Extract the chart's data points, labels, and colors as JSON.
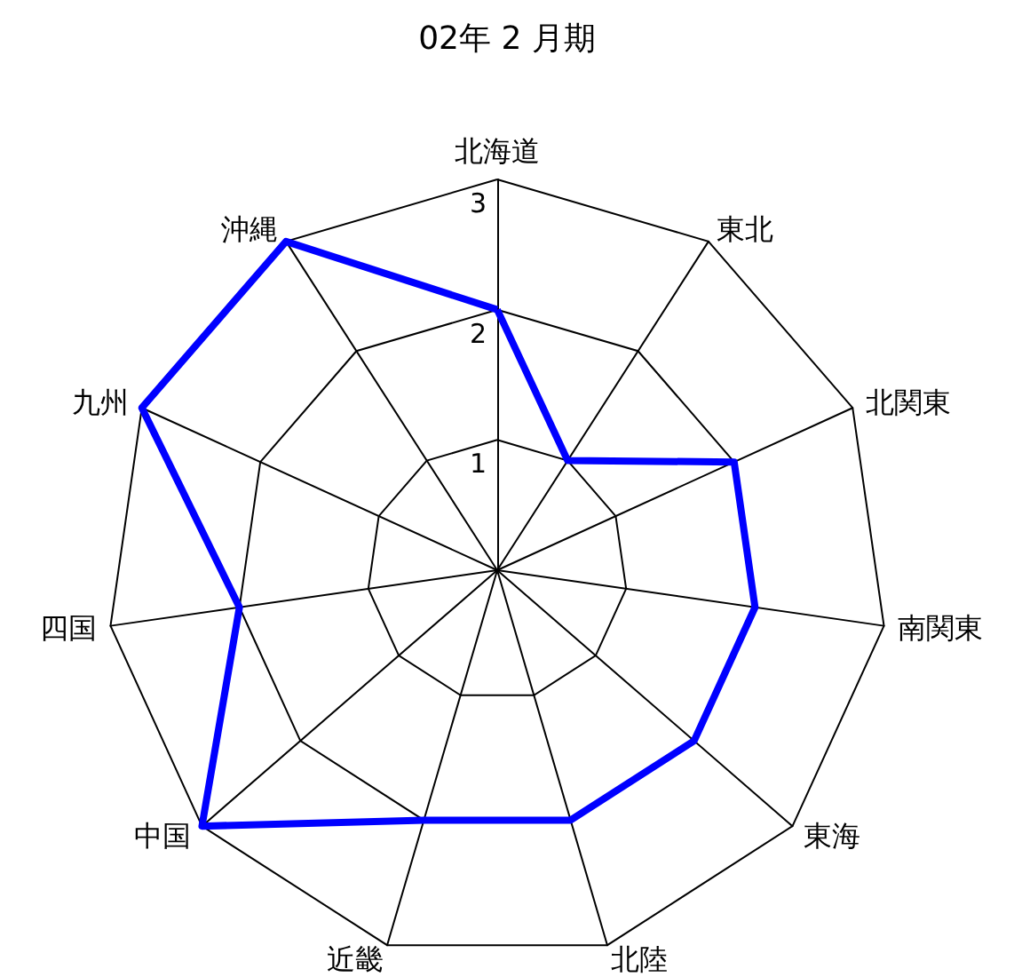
{
  "chart_data": {
    "type": "radar",
    "title": "02年 2 月期",
    "categories": [
      "北海道",
      "東北",
      "北関東",
      "南関東",
      "東海",
      "北陸",
      "近畿",
      "中国",
      "四国",
      "九州",
      "沖縄"
    ],
    "series": [
      {
        "color": "#0000ff",
        "values": [
          2,
          1,
          2,
          2,
          2,
          2,
          2,
          3,
          2,
          3,
          3
        ]
      }
    ],
    "ylim": [
      0,
      3
    ],
    "yticks": [
      1,
      2,
      3
    ],
    "grid": true,
    "marker": "none",
    "line_style": "solid"
  }
}
